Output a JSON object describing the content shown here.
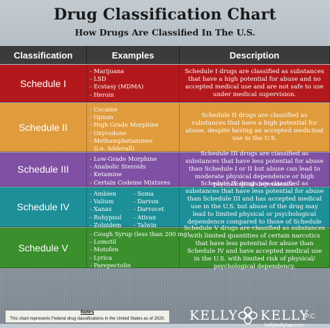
{
  "title": "Drug Classification Chart",
  "subtitle": "How Drugs Are Classified In The U.S.",
  "headers": {
    "classification": "Classification",
    "examples": "Examples",
    "description": "Description"
  },
  "colors": {
    "header": "#3b3b3b",
    "schedule_1": "#b3191c",
    "schedule_2": "#e09b3c",
    "schedule_3": "#7f50a3",
    "schedule_4": "#1d8f98",
    "schedule_5": "#3b8f2d"
  },
  "schedules": [
    {
      "name": "Schedule I",
      "examples": [
        "- Marijuana",
        "- LSD",
        "- Ecstasy (MDMA)",
        "- Heroin"
      ],
      "description": "Schedule I drugs are classified as substances that have a high potential for abuse and no accepted medical use and are not safe to use under medical supervision."
    },
    {
      "name": "Schedule II",
      "examples": [
        "- Cocaine",
        "- Opium",
        "- High Grade Morphine",
        "- Oxycodone",
        "- Methamphetamines",
        "  (i.e. Adderall)"
      ],
      "description": "Schedule II drugs are classified as substances that have a high potential for abuse, despite having an accepted medicinal use in the U.S."
    },
    {
      "name": "Schedule III",
      "examples": [
        "- Low-Grade Morphine",
        "- Anabolic Steroids",
        "- Ketamine",
        "- Certain Codeine Mixtures"
      ],
      "description": "Schedule III drugs are classified as substances that have less potential for abuse than Schedule I or II but abuse can lead to moderate physical dependence or high psychological dependence."
    },
    {
      "name": "Schedule IV",
      "examples_left": [
        "- Ambien",
        "- Valium",
        "- Xanax",
        "- Rohypnol",
        "- Zolpidem"
      ],
      "examples_right": [
        "- Soma",
        "- Darvon",
        "- Darvocet",
        "- Ativan",
        "- Talwin"
      ],
      "description": "Schedule IV drugs are classified as substances that have less potential for abuse than Schedule III and has accepted medical use in the U.S. but abuse of the drug may lead to limited physical or psychological dependence compared to those of Schedule III"
    },
    {
      "name": "Schedule V",
      "examples": [
        "- Cough Syrup (less than 200 mg)",
        "- Lomotil",
        "- Motofen",
        "- Lyrica",
        "- Parepectolin"
      ],
      "description": "Schedule V drugs are classified as substances with limited quantities of certain narcotics that have less potential for abuse than Schedule IV and have accepted medical use in the U.S. with limited risk of physical/ psychological dependency."
    }
  ],
  "notes": {
    "title": "Notes",
    "text": "This chart represents Federal drug classifications in the United States as of 2020."
  },
  "logo": {
    "left": "KELLY",
    "right": "KELLY",
    "suffix": "P.C.",
    "url": "kellykellylaw.com"
  }
}
